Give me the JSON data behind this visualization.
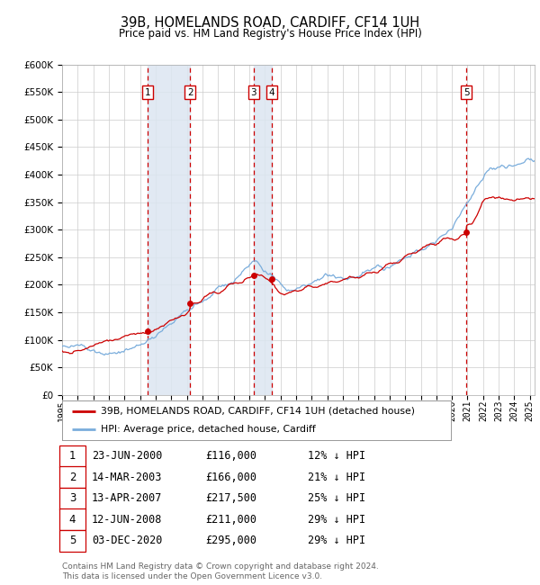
{
  "title": "39B, HOMELANDS ROAD, CARDIFF, CF14 1UH",
  "subtitle": "Price paid vs. HM Land Registry's House Price Index (HPI)",
  "ylim": [
    0,
    600000
  ],
  "yticks": [
    0,
    50000,
    100000,
    150000,
    200000,
    250000,
    300000,
    350000,
    400000,
    450000,
    500000,
    550000,
    600000
  ],
  "xlim_start": 1995.0,
  "xlim_end": 2025.3,
  "hpi_color": "#7aaddc",
  "property_color": "#cc0000",
  "background_color": "#ffffff",
  "grid_color": "#cccccc",
  "sale_highlight_color": "#dce6f1",
  "purchases": [
    {
      "label": "1",
      "date_str": "23-JUN-2000",
      "year": 2000.47,
      "price": 116000
    },
    {
      "label": "2",
      "date_str": "14-MAR-2003",
      "year": 2003.2,
      "price": 166000
    },
    {
      "label": "3",
      "date_str": "13-APR-2007",
      "year": 2007.28,
      "price": 217500
    },
    {
      "label": "4",
      "date_str": "12-JUN-2008",
      "year": 2008.45,
      "price": 211000
    },
    {
      "label": "5",
      "date_str": "03-DEC-2020",
      "year": 2020.92,
      "price": 295000
    }
  ],
  "legend_property_label": "39B, HOMELANDS ROAD, CARDIFF, CF14 1UH (detached house)",
  "legend_hpi_label": "HPI: Average price, detached house, Cardiff",
  "footer": "Contains HM Land Registry data © Crown copyright and database right 2024.\nThis data is licensed under the Open Government Licence v3.0.",
  "table_rows": [
    [
      "1",
      "23-JUN-2000",
      "£116,000",
      "12% ↓ HPI"
    ],
    [
      "2",
      "14-MAR-2003",
      "£166,000",
      "21% ↓ HPI"
    ],
    [
      "3",
      "13-APR-2007",
      "£217,500",
      "25% ↓ HPI"
    ],
    [
      "4",
      "12-JUN-2008",
      "£211,000",
      "29% ↓ HPI"
    ],
    [
      "5",
      "03-DEC-2020",
      "£295,000",
      "29% ↓ HPI"
    ]
  ]
}
